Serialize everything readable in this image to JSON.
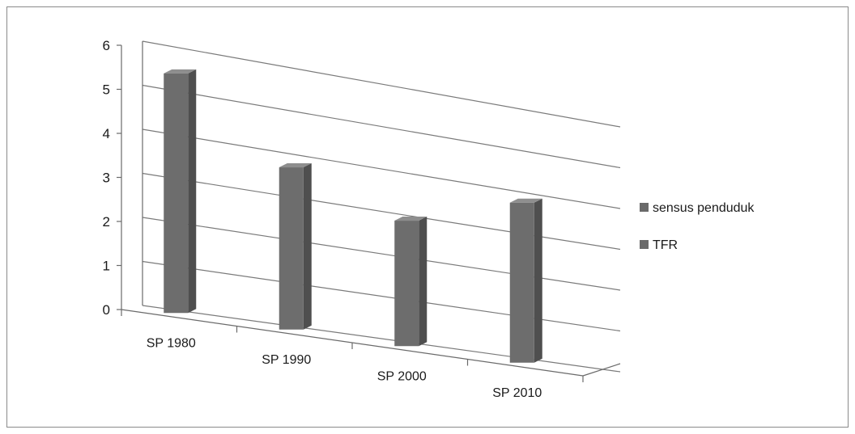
{
  "chart_data": {
    "type": "bar",
    "title": "",
    "xlabel": "",
    "ylabel": "",
    "ylim": [
      0,
      6
    ],
    "yticks": [
      "0",
      "1",
      "2",
      "3",
      "4",
      "5",
      "6"
    ],
    "categories": [
      "SP 1980",
      "SP 1990",
      "SP 2000",
      "SP 2010"
    ],
    "series": [
      {
        "name": "sensus penduduk",
        "values": [
          null,
          null,
          null,
          null
        ]
      },
      {
        "name": "TFR",
        "values": [
          5.6,
          3.9,
          3.1,
          4.0
        ]
      }
    ],
    "grid": true,
    "legend_position": "right",
    "three_d": true,
    "colors": {
      "bar_front": "#6d6d6d",
      "bar_side": "#4f4f4f",
      "bar_top": "#8e8e8e",
      "grid": "#7a7a7a",
      "axis": "#6a6a6a",
      "legend_marker": "#6a6a6a"
    }
  }
}
